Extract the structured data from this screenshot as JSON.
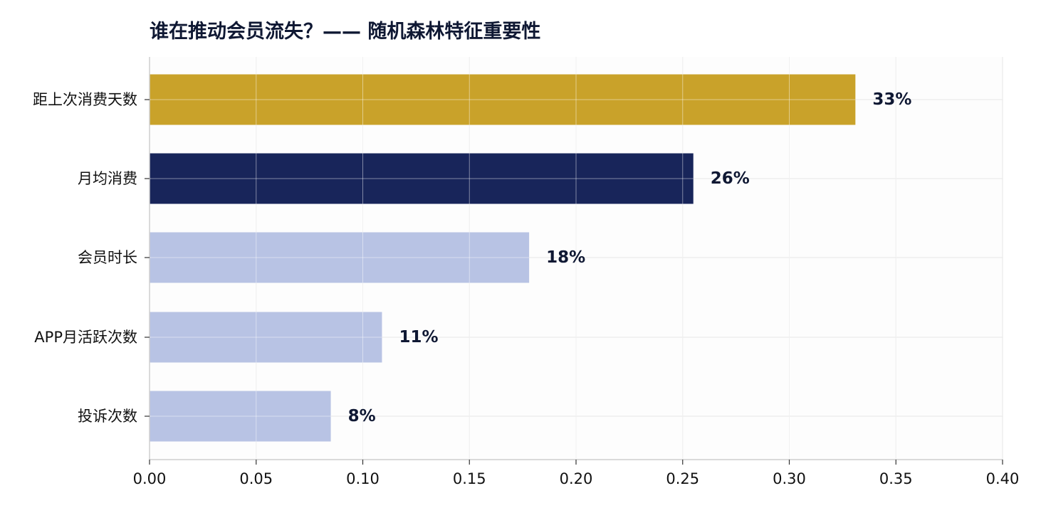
{
  "chart_data": {
    "type": "bar",
    "orientation": "horizontal",
    "title": "谁在推动会员流失？—— 随机森林特征重要性",
    "xlabel": "",
    "ylabel": "",
    "categories": [
      "距上次消费天数",
      "月均消费",
      "会员时长",
      "APP月活跃次数",
      "投诉次数"
    ],
    "values": [
      0.331,
      0.255,
      0.178,
      0.109,
      0.085
    ],
    "data_labels": [
      "33%",
      "26%",
      "18%",
      "11%",
      "8%"
    ],
    "bar_colors": [
      "#c9a22a",
      "#18255a",
      "#b8c3e4",
      "#b8c3e4",
      "#b8c3e4"
    ],
    "xlim": [
      0,
      0.4
    ],
    "x_ticks": [
      0.0,
      0.05,
      0.1,
      0.15,
      0.2,
      0.25,
      0.3,
      0.35,
      0.4
    ],
    "x_tick_labels": [
      "0.00",
      "0.05",
      "0.10",
      "0.15",
      "0.20",
      "0.25",
      "0.30",
      "0.35",
      "0.40"
    ],
    "grid": true,
    "legend": "none",
    "colors": {
      "title": "#0f1833",
      "label": "#0f1833",
      "grid": "#e6e6e6",
      "axis": "#cfcfcf",
      "plot_bg": "#fdfdfd"
    }
  }
}
